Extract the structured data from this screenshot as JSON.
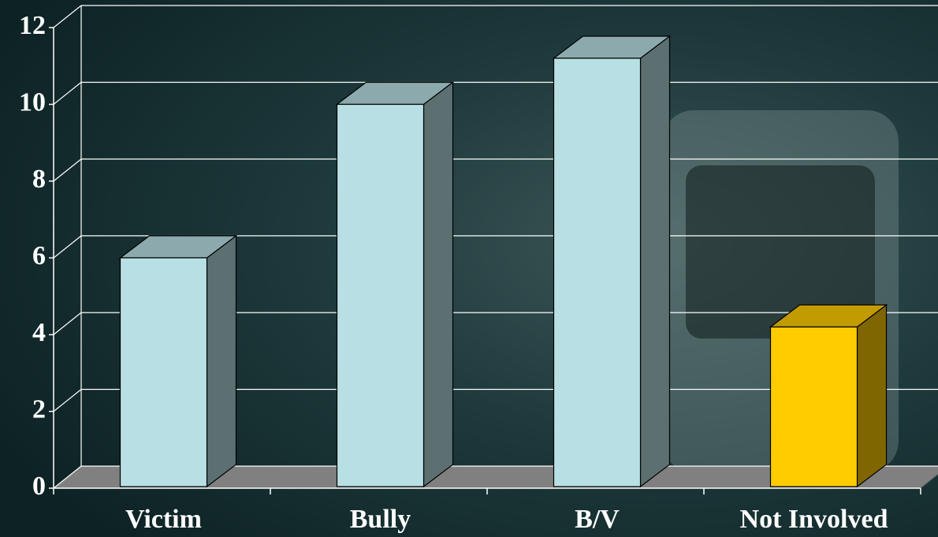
{
  "chart_data": {
    "type": "bar3d",
    "categories": [
      "Victim",
      "Bully",
      "B/V",
      "Not Involved"
    ],
    "values": [
      6,
      10,
      11.2,
      4.2
    ],
    "colors": [
      "#b8e0e4",
      "#b8e0e4",
      "#b8e0e4",
      "#ffcc00"
    ],
    "ylim": [
      0,
      12
    ],
    "yticks": [
      0,
      2,
      4,
      6,
      8,
      10,
      12
    ],
    "grid": true
  }
}
